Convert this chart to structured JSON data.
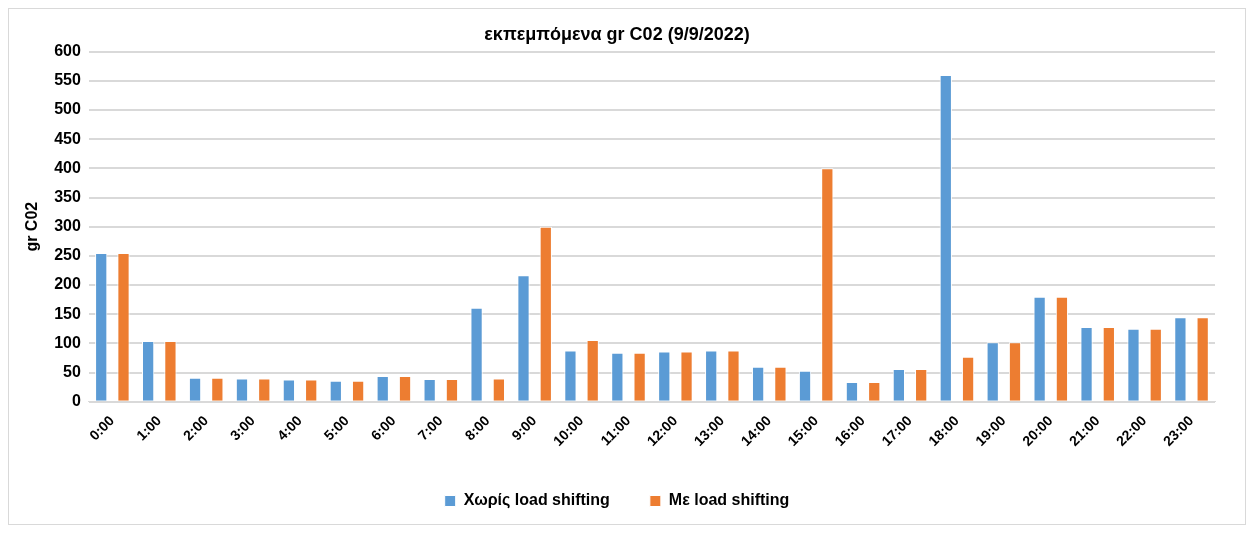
{
  "chart_data": {
    "type": "bar",
    "title": "εκπεμπόμενα gr C02 (9/9/2022)",
    "ylabel": "gr C02",
    "categories": [
      "0:00",
      "1:00",
      "2:00",
      "3:00",
      "4:00",
      "5:00",
      "6:00",
      "7:00",
      "8:00",
      "9:00",
      "10:00",
      "11:00",
      "12:00",
      "13:00",
      "14:00",
      "15:00",
      "16:00",
      "17:00",
      "18:00",
      "19:00",
      "20:00",
      "21:00",
      "22:00",
      "23:00"
    ],
    "series": [
      {
        "name": "Χωρίς load shifting",
        "color": "#5b9bd5",
        "values": [
          255,
          104,
          41,
          40,
          38,
          36,
          44,
          39,
          161,
          217,
          88,
          84,
          86,
          88,
          60,
          53,
          34,
          56,
          560,
          102,
          180,
          128,
          125,
          145
        ]
      },
      {
        "name": "Με load shifting",
        "color": "#ed7d31",
        "values": [
          255,
          104,
          41,
          40,
          38,
          36,
          44,
          39,
          40,
          300,
          106,
          84,
          86,
          88,
          60,
          400,
          34,
          56,
          77,
          102,
          180,
          128,
          125,
          145
        ]
      }
    ],
    "ylim": [
      0,
      600
    ],
    "yticks": [
      0,
      50,
      100,
      150,
      200,
      250,
      300,
      350,
      400,
      450,
      500,
      550,
      600
    ],
    "grid": "y",
    "legend": "bottom"
  }
}
